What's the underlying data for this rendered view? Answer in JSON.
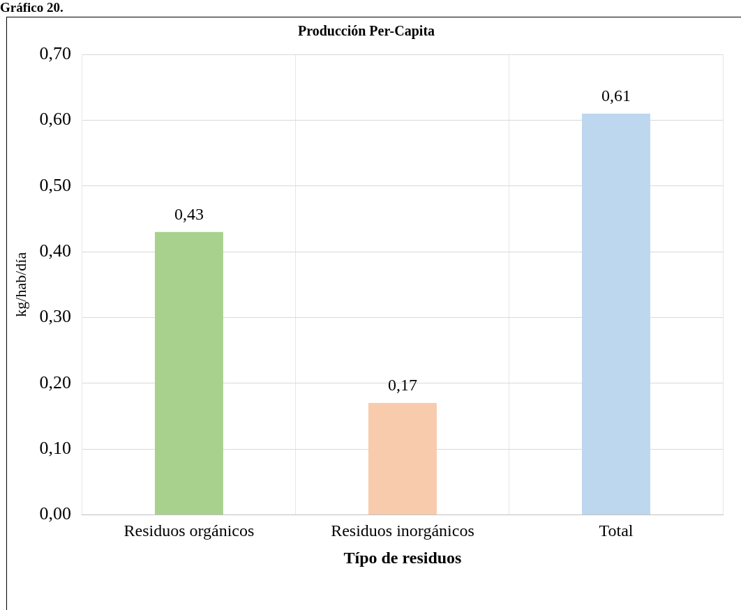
{
  "chart_data": {
    "type": "bar",
    "title": "Producción Per-Capita",
    "xlabel": "Típo de residuos",
    "ylabel": "kg/hab/día",
    "annotations": [
      "Gráfico 20."
    ],
    "categories": [
      "Residuos orgánicos",
      "Residuos inorgánicos",
      "Total"
    ],
    "values": [
      0.43,
      0.17,
      0.61
    ],
    "value_labels": [
      "0,43",
      "0,17",
      "0,61"
    ],
    "colors": [
      "#a9d18e",
      "#f8cbad",
      "#bdd7ee"
    ],
    "ylim": [
      0,
      0.7
    ],
    "yticks": [
      {
        "value": 0,
        "label": "0,00"
      },
      {
        "value": 0.1,
        "label": "0,10"
      },
      {
        "value": 0.2,
        "label": "0,20"
      },
      {
        "value": 0.3,
        "label": "0,30"
      },
      {
        "value": 0.4,
        "label": "0,40"
      },
      {
        "value": 0.5,
        "label": "0,50"
      },
      {
        "value": 0.6,
        "label": "0,60"
      },
      {
        "value": 0.7,
        "label": "0,70"
      }
    ],
    "grid": true,
    "legend": false
  }
}
